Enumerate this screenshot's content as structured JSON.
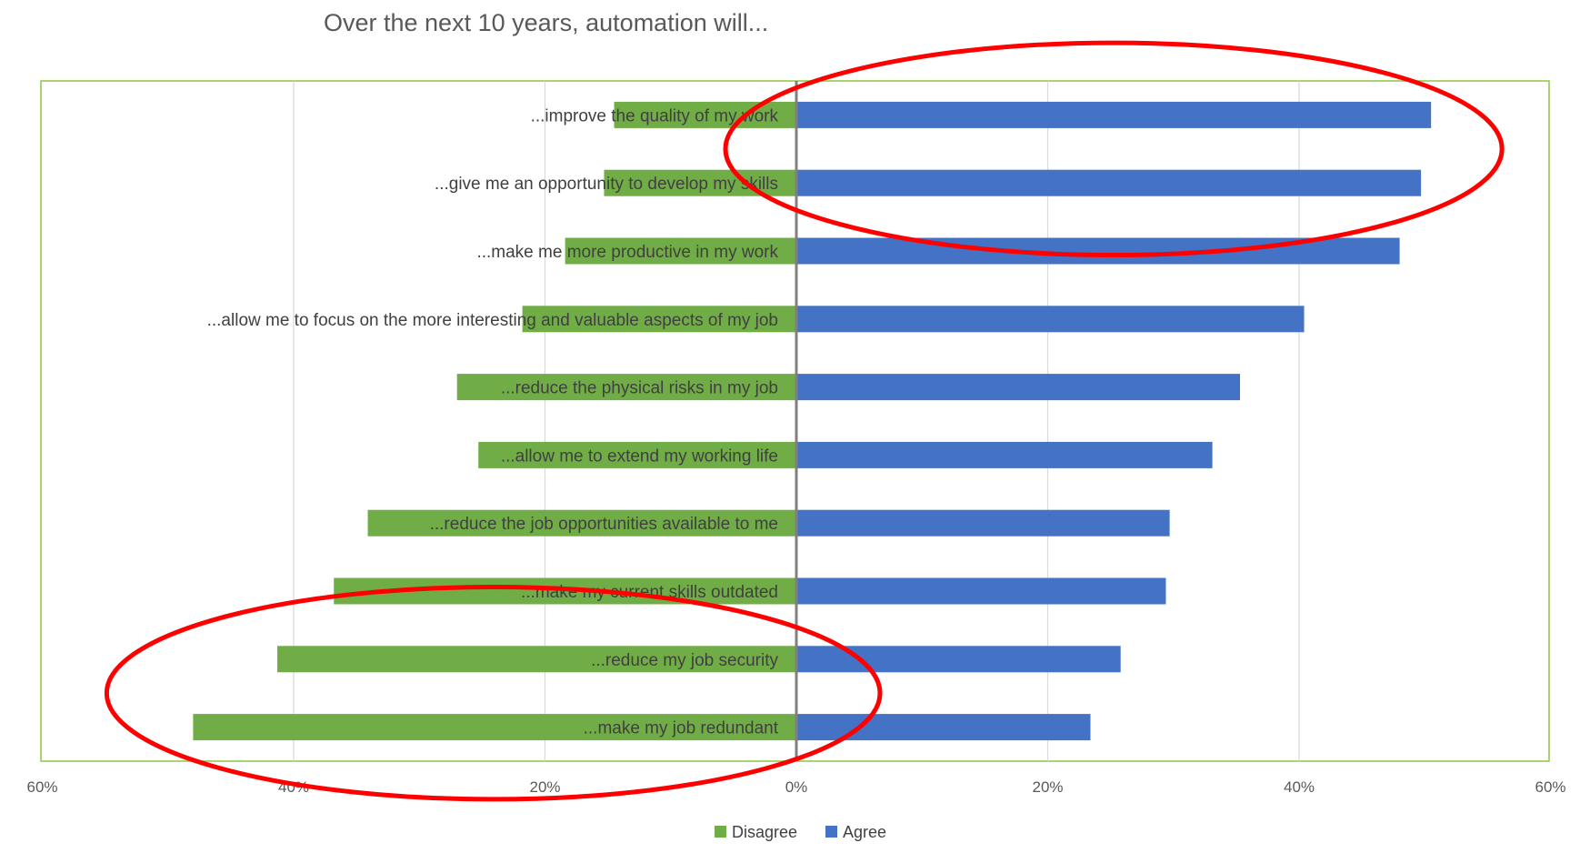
{
  "chart_data": {
    "type": "bar",
    "orientation": "horizontal-diverging",
    "title": "Over the next 10 years, automation will...",
    "categories": [
      "...improve the quality of my work",
      "...give me an opportunity to develop my skills",
      "...make me more productive in my work",
      "...allow me to focus on the more interesting and valuable aspects of my job",
      "...reduce the physical risks in my job",
      "...allow me to extend my working life",
      "...reduce the job opportunities available to me",
      "...make my current skills outdated",
      "...reduce my job security",
      "...make my job redundant"
    ],
    "series": [
      {
        "name": "Disagree",
        "color": "#70ad47",
        "direction": "left",
        "values": [
          14.5,
          15.3,
          18.4,
          21.8,
          27.0,
          25.3,
          34.1,
          36.8,
          41.3,
          48.0
        ]
      },
      {
        "name": "Agree",
        "color": "#4472c4",
        "direction": "right",
        "values": [
          50.5,
          49.7,
          48.0,
          40.4,
          35.3,
          33.1,
          29.7,
          29.4,
          25.8,
          23.4
        ]
      }
    ],
    "xlim": [
      -60,
      60
    ],
    "xticks": [
      {
        "value": -60,
        "label": "60%"
      },
      {
        "value": -40,
        "label": "40%"
      },
      {
        "value": -20,
        "label": "20%"
      },
      {
        "value": 0,
        "label": "0%"
      },
      {
        "value": 20,
        "label": "20%"
      },
      {
        "value": 40,
        "label": "40%"
      },
      {
        "value": 60,
        "label": "60%"
      }
    ],
    "grid": true,
    "legend": "bottom",
    "annotations": [
      {
        "type": "ellipse",
        "color": "#ff0000",
        "encloses": "Agree",
        "categories": [
          0,
          1
        ]
      },
      {
        "type": "ellipse",
        "color": "#ff0000",
        "encloses": "Disagree",
        "categories": [
          8,
          9
        ]
      }
    ],
    "colors": {
      "plot_border": "#8dc63f",
      "grid": "#d9d9d9",
      "zero_axis": "#808080",
      "annotation": "#ff0000"
    }
  }
}
